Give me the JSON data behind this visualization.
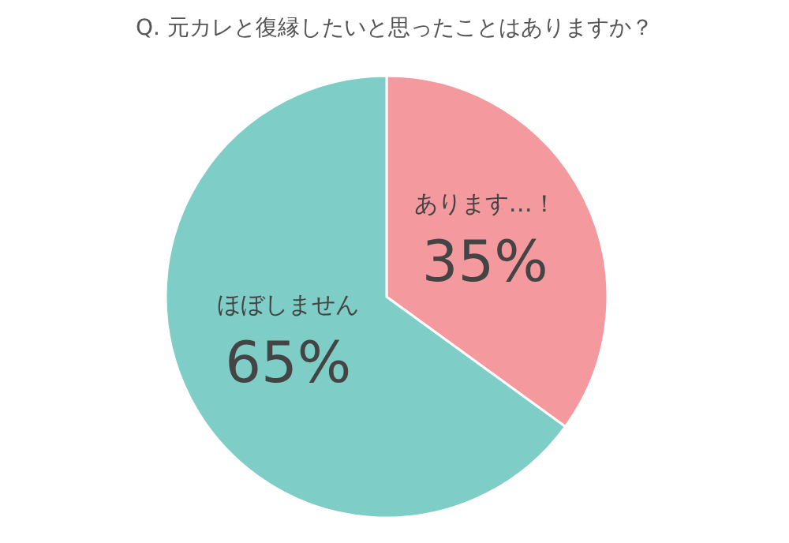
{
  "chart_data": {
    "type": "pie",
    "title": "Q. 元カレと復縁したいと思ったことはありますか？",
    "categories": [
      "あります…！",
      "ほぼしません"
    ],
    "values": [
      35,
      65
    ],
    "colors": [
      "#f4999d",
      "#7ecdc7"
    ],
    "value_labels": [
      "35%",
      "65%"
    ]
  }
}
